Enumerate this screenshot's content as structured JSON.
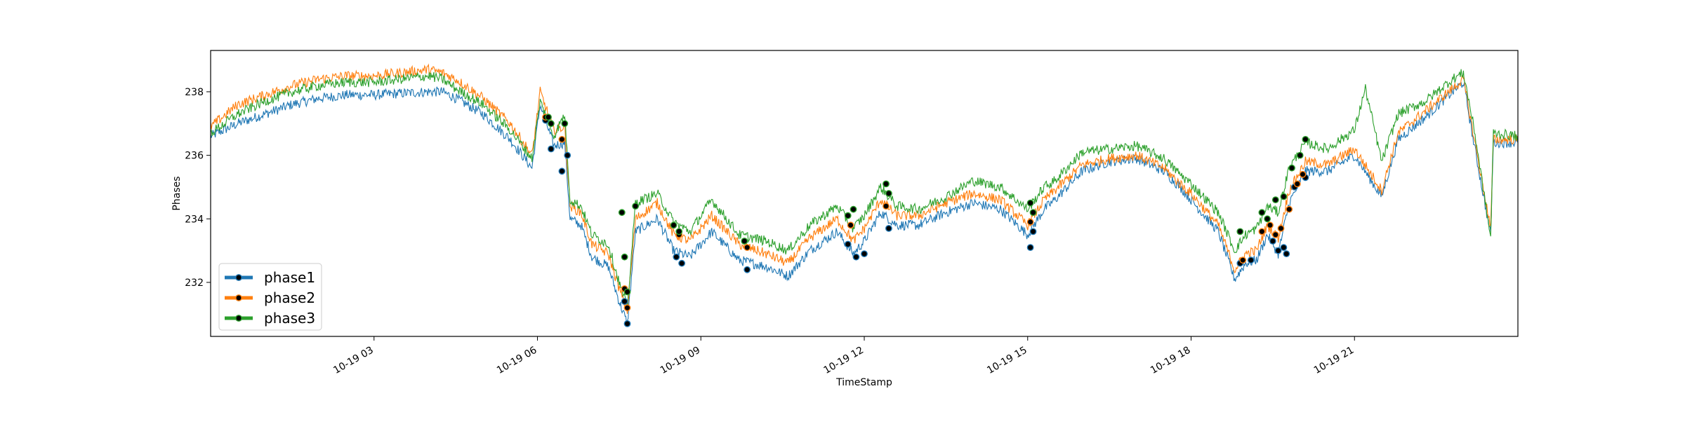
{
  "chart_data": {
    "type": "line",
    "title": "",
    "xlabel": "TimeStamp",
    "ylabel": "Phases",
    "xlim": [
      "10-19 00:00",
      "24:00"
    ],
    "ylim": [
      230.3,
      239.3
    ],
    "x_ticks": [
      "10-19 03",
      "10-19 06",
      "10-19 09",
      "10-19 12",
      "10-19 15",
      "10-19 18",
      "10-19 21"
    ],
    "y_ticks": [
      232,
      234,
      236,
      238
    ],
    "grid": false,
    "legend": {
      "position": "lower-left",
      "marker": "black circle"
    },
    "colors": {
      "phase1": "#1f77b4",
      "phase2": "#ff7f0e",
      "phase3": "#2ca02c",
      "marker": "#000000"
    },
    "series": [
      {
        "name": "phase1",
        "color": "#1f77b4",
        "points": [
          [
            0.0,
            236.6
          ],
          [
            0.5,
            237.0
          ],
          [
            1.0,
            237.3
          ],
          [
            1.5,
            237.6
          ],
          [
            2.0,
            237.8
          ],
          [
            2.5,
            237.9
          ],
          [
            3.0,
            237.9
          ],
          [
            3.5,
            237.95
          ],
          [
            4.0,
            238.0
          ],
          [
            4.25,
            238.0
          ],
          [
            4.5,
            237.8
          ],
          [
            5.0,
            237.3
          ],
          [
            5.5,
            236.5
          ],
          [
            5.9,
            235.6
          ],
          [
            6.05,
            237.6
          ],
          [
            6.3,
            236.3
          ],
          [
            6.5,
            236.4
          ],
          [
            6.6,
            234.0
          ],
          [
            6.8,
            233.8
          ],
          [
            7.0,
            232.8
          ],
          [
            7.3,
            232.5
          ],
          [
            7.5,
            231.4
          ],
          [
            7.65,
            230.7
          ],
          [
            7.8,
            233.6
          ],
          [
            8.2,
            234.0
          ],
          [
            8.5,
            233.0
          ],
          [
            8.8,
            232.8
          ],
          [
            9.2,
            233.6
          ],
          [
            9.7,
            232.7
          ],
          [
            10.2,
            232.5
          ],
          [
            10.6,
            232.2
          ],
          [
            11.0,
            233.0
          ],
          [
            11.5,
            233.6
          ],
          [
            11.8,
            232.9
          ],
          [
            12.0,
            233.3
          ],
          [
            12.3,
            234.2
          ],
          [
            12.6,
            233.8
          ],
          [
            13.0,
            233.8
          ],
          [
            13.5,
            234.2
          ],
          [
            14.0,
            234.5
          ],
          [
            14.5,
            234.3
          ],
          [
            15.0,
            233.5
          ],
          [
            15.3,
            234.3
          ],
          [
            15.5,
            234.6
          ],
          [
            16.0,
            235.5
          ],
          [
            16.5,
            235.8
          ],
          [
            17.0,
            235.9
          ],
          [
            17.5,
            235.5
          ],
          [
            17.8,
            235.0
          ],
          [
            18.0,
            234.6
          ],
          [
            18.5,
            233.6
          ],
          [
            18.8,
            232.1
          ],
          [
            19.0,
            232.6
          ],
          [
            19.2,
            232.7
          ],
          [
            19.4,
            233.5
          ],
          [
            19.6,
            232.9
          ],
          [
            19.8,
            234.5
          ],
          [
            20.1,
            235.5
          ],
          [
            20.5,
            235.5
          ],
          [
            21.0,
            236.0
          ],
          [
            21.5,
            234.7
          ],
          [
            21.8,
            236.5
          ],
          [
            22.3,
            237.2
          ],
          [
            22.8,
            238.0
          ],
          [
            23.0,
            238.3
          ],
          [
            23.2,
            236.3
          ],
          [
            23.5,
            233.5
          ],
          [
            23.55,
            236.4
          ],
          [
            24.0,
            236.4
          ]
        ],
        "markers": [
          [
            6.15,
            237.1
          ],
          [
            6.25,
            236.2
          ],
          [
            6.45,
            235.5
          ],
          [
            6.55,
            236.0
          ],
          [
            7.6,
            231.4
          ],
          [
            7.65,
            230.7
          ],
          [
            8.55,
            232.8
          ],
          [
            8.65,
            232.6
          ],
          [
            9.85,
            232.4
          ],
          [
            11.7,
            233.2
          ],
          [
            11.85,
            232.8
          ],
          [
            12.0,
            232.9
          ],
          [
            12.45,
            233.7
          ],
          [
            15.05,
            233.1
          ],
          [
            15.1,
            233.6
          ],
          [
            18.9,
            232.6
          ],
          [
            19.1,
            232.7
          ],
          [
            19.5,
            233.3
          ],
          [
            19.6,
            233.0
          ],
          [
            19.7,
            233.1
          ],
          [
            19.75,
            232.9
          ],
          [
            19.9,
            235.0
          ],
          [
            20.1,
            235.3
          ]
        ]
      },
      {
        "name": "phase2",
        "color": "#ff7f0e",
        "points": [
          [
            0.0,
            236.9
          ],
          [
            0.5,
            237.6
          ],
          [
            1.0,
            237.9
          ],
          [
            1.5,
            238.2
          ],
          [
            2.0,
            238.4
          ],
          [
            2.5,
            238.5
          ],
          [
            3.0,
            238.5
          ],
          [
            3.5,
            238.6
          ],
          [
            4.0,
            238.7
          ],
          [
            4.25,
            238.6
          ],
          [
            4.5,
            238.4
          ],
          [
            5.0,
            237.8
          ],
          [
            5.5,
            237.0
          ],
          [
            5.9,
            236.0
          ],
          [
            6.05,
            238.0
          ],
          [
            6.3,
            236.8
          ],
          [
            6.5,
            236.9
          ],
          [
            6.6,
            234.4
          ],
          [
            6.8,
            234.2
          ],
          [
            7.0,
            233.2
          ],
          [
            7.3,
            232.9
          ],
          [
            7.5,
            231.8
          ],
          [
            7.65,
            231.1
          ],
          [
            7.8,
            234.0
          ],
          [
            8.2,
            234.5
          ],
          [
            8.5,
            233.5
          ],
          [
            8.8,
            233.3
          ],
          [
            9.2,
            234.1
          ],
          [
            9.7,
            233.2
          ],
          [
            10.2,
            232.9
          ],
          [
            10.6,
            232.6
          ],
          [
            11.0,
            233.4
          ],
          [
            11.5,
            234.0
          ],
          [
            11.8,
            233.3
          ],
          [
            12.0,
            233.7
          ],
          [
            12.3,
            234.6
          ],
          [
            12.6,
            234.1
          ],
          [
            13.0,
            234.1
          ],
          [
            13.5,
            234.5
          ],
          [
            14.0,
            234.8
          ],
          [
            14.5,
            234.6
          ],
          [
            15.0,
            233.8
          ],
          [
            15.3,
            234.6
          ],
          [
            15.5,
            234.9
          ],
          [
            16.0,
            235.7
          ],
          [
            16.5,
            235.9
          ],
          [
            17.0,
            236.0
          ],
          [
            17.5,
            235.6
          ],
          [
            17.8,
            235.1
          ],
          [
            18.0,
            234.8
          ],
          [
            18.5,
            233.8
          ],
          [
            18.8,
            232.4
          ],
          [
            19.0,
            232.9
          ],
          [
            19.2,
            233.0
          ],
          [
            19.4,
            233.8
          ],
          [
            19.6,
            233.4
          ],
          [
            19.8,
            234.9
          ],
          [
            20.1,
            235.8
          ],
          [
            20.5,
            235.7
          ],
          [
            21.0,
            236.2
          ],
          [
            21.5,
            234.9
          ],
          [
            21.8,
            236.7
          ],
          [
            22.3,
            237.4
          ],
          [
            22.8,
            238.1
          ],
          [
            23.0,
            238.4
          ],
          [
            23.2,
            236.5
          ],
          [
            23.5,
            233.7
          ],
          [
            23.55,
            236.5
          ],
          [
            24.0,
            236.5
          ]
        ],
        "markers": [
          [
            6.15,
            237.2
          ],
          [
            6.45,
            236.5
          ],
          [
            7.6,
            231.8
          ],
          [
            7.65,
            231.2
          ],
          [
            8.6,
            233.5
          ],
          [
            9.85,
            233.1
          ],
          [
            11.75,
            233.8
          ],
          [
            12.4,
            234.4
          ],
          [
            15.05,
            233.9
          ],
          [
            18.95,
            232.7
          ],
          [
            19.3,
            233.6
          ],
          [
            19.45,
            233.8
          ],
          [
            19.55,
            233.5
          ],
          [
            19.65,
            233.7
          ],
          [
            19.8,
            234.3
          ],
          [
            19.95,
            235.1
          ],
          [
            20.05,
            235.4
          ]
        ]
      },
      {
        "name": "phase3",
        "color": "#2ca02c",
        "points": [
          [
            0.0,
            236.7
          ],
          [
            0.5,
            237.3
          ],
          [
            1.0,
            237.7
          ],
          [
            1.5,
            238.0
          ],
          [
            2.0,
            238.2
          ],
          [
            2.5,
            238.3
          ],
          [
            3.0,
            238.3
          ],
          [
            3.5,
            238.4
          ],
          [
            4.0,
            238.5
          ],
          [
            4.25,
            238.4
          ],
          [
            4.5,
            238.1
          ],
          [
            5.0,
            237.6
          ],
          [
            5.5,
            236.8
          ],
          [
            5.9,
            235.9
          ],
          [
            6.05,
            237.7
          ],
          [
            6.3,
            236.6
          ],
          [
            6.5,
            237.3
          ],
          [
            6.6,
            234.6
          ],
          [
            6.8,
            234.4
          ],
          [
            7.0,
            233.5
          ],
          [
            7.3,
            233.2
          ],
          [
            7.5,
            232.0
          ],
          [
            7.65,
            231.2
          ],
          [
            7.8,
            234.5
          ],
          [
            8.2,
            234.8
          ],
          [
            8.5,
            233.9
          ],
          [
            8.8,
            233.6
          ],
          [
            9.2,
            234.6
          ],
          [
            9.7,
            233.5
          ],
          [
            10.2,
            233.3
          ],
          [
            10.6,
            233.0
          ],
          [
            11.0,
            233.8
          ],
          [
            11.5,
            234.4
          ],
          [
            11.8,
            233.7
          ],
          [
            12.0,
            234.1
          ],
          [
            12.3,
            235.0
          ],
          [
            12.6,
            234.4
          ],
          [
            13.0,
            234.3
          ],
          [
            13.5,
            234.7
          ],
          [
            14.0,
            235.2
          ],
          [
            14.5,
            235.0
          ],
          [
            15.0,
            234.3
          ],
          [
            15.3,
            235.0
          ],
          [
            15.5,
            235.2
          ],
          [
            16.0,
            236.1
          ],
          [
            16.5,
            236.2
          ],
          [
            17.0,
            236.3
          ],
          [
            17.5,
            235.9
          ],
          [
            17.8,
            235.4
          ],
          [
            18.0,
            235.1
          ],
          [
            18.5,
            234.2
          ],
          [
            18.8,
            233.0
          ],
          [
            19.0,
            233.5
          ],
          [
            19.2,
            233.7
          ],
          [
            19.4,
            234.4
          ],
          [
            19.6,
            234.2
          ],
          [
            19.8,
            235.6
          ],
          [
            20.1,
            236.4
          ],
          [
            20.5,
            236.2
          ],
          [
            21.0,
            236.8
          ],
          [
            21.2,
            238.1
          ],
          [
            21.5,
            235.8
          ],
          [
            21.8,
            237.3
          ],
          [
            22.3,
            237.7
          ],
          [
            22.8,
            238.4
          ],
          [
            23.0,
            238.6
          ],
          [
            23.2,
            236.8
          ],
          [
            23.5,
            233.4
          ],
          [
            23.55,
            236.7
          ],
          [
            24.0,
            236.6
          ]
        ],
        "markers": [
          [
            6.2,
            237.2
          ],
          [
            6.25,
            237.0
          ],
          [
            6.5,
            237.0
          ],
          [
            7.55,
            234.2
          ],
          [
            7.6,
            232.8
          ],
          [
            7.65,
            231.7
          ],
          [
            7.8,
            234.4
          ],
          [
            8.5,
            233.8
          ],
          [
            8.6,
            233.6
          ],
          [
            9.8,
            233.3
          ],
          [
            11.7,
            234.1
          ],
          [
            11.8,
            234.3
          ],
          [
            12.4,
            235.1
          ],
          [
            12.45,
            234.8
          ],
          [
            15.05,
            234.5
          ],
          [
            15.1,
            234.2
          ],
          [
            18.9,
            233.6
          ],
          [
            19.3,
            234.2
          ],
          [
            19.4,
            234.0
          ],
          [
            19.55,
            234.6
          ],
          [
            19.7,
            234.7
          ],
          [
            19.85,
            235.6
          ],
          [
            20.0,
            236.0
          ],
          [
            20.1,
            236.5
          ]
        ]
      }
    ]
  }
}
